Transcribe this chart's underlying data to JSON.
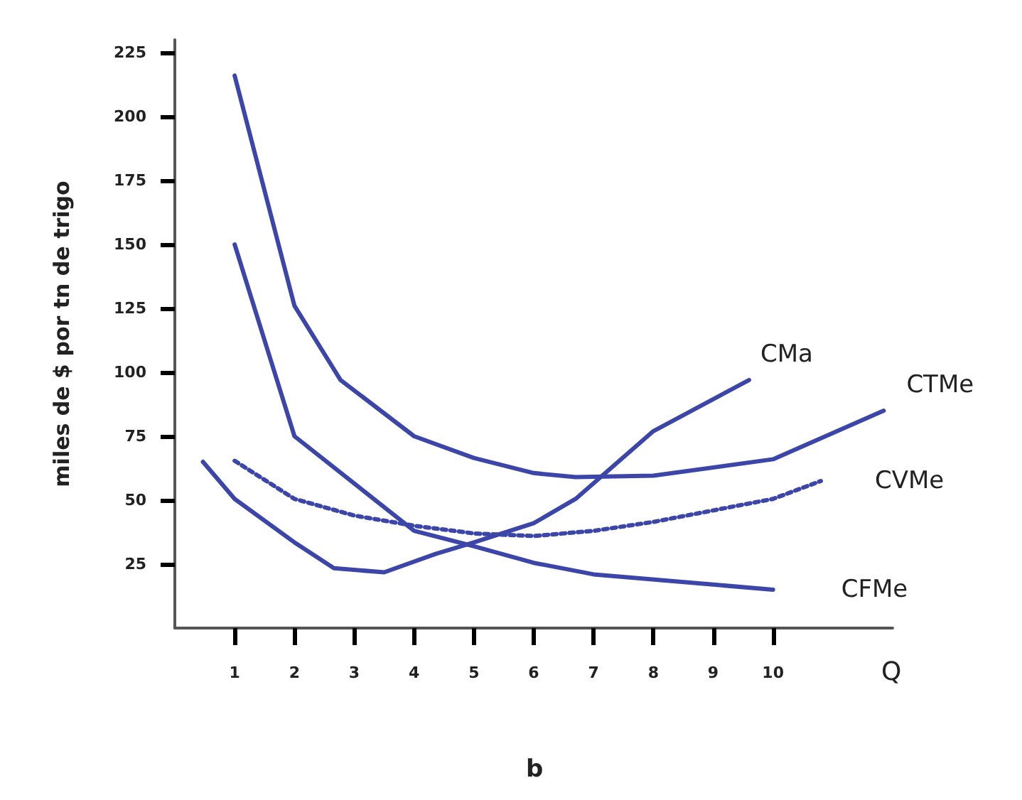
{
  "chart_data": {
    "type": "line",
    "xlabel": "Q",
    "ylabel": "miles de $ por tn de trigo",
    "xlim": [
      0,
      12
    ],
    "xticks": [
      1,
      2,
      3,
      4,
      5,
      6,
      7,
      8,
      9,
      10
    ],
    "ylim": [
      0,
      230
    ],
    "yticks": [
      25,
      50,
      75,
      100,
      125,
      150,
      175,
      200,
      225
    ],
    "grid": false,
    "marker": "none",
    "annotations": [
      "b"
    ],
    "series": [
      {
        "name": "CMa",
        "color": "#3b46a8",
        "line_style": "solid",
        "x": [
          0.47,
          1,
          2,
          2.66,
          3.5,
          4.36,
          5,
          6,
          6.7,
          8,
          9.6
        ],
        "values": [
          65,
          50.5,
          33.5,
          23.4,
          21.8,
          29,
          33.5,
          41,
          50.5,
          77,
          97
        ]
      },
      {
        "name": "CTMe",
        "color": "#3b46a8",
        "line_style": "solid",
        "x": [
          1,
          2,
          2.77,
          4,
          5,
          6,
          6.7,
          8,
          10,
          11.85
        ],
        "values": [
          216,
          126,
          97,
          75,
          66.5,
          60.6,
          59,
          59.6,
          66,
          85
        ]
      },
      {
        "name": "CVMe",
        "color": "#3b46a8",
        "line_style": "dotted",
        "x": [
          1,
          2,
          3,
          4,
          5,
          6,
          7,
          8,
          10,
          10.8
        ],
        "values": [
          65.4,
          50.5,
          44,
          40,
          37,
          36,
          38,
          41.5,
          50.5,
          57.5
        ]
      },
      {
        "name": "CFMe",
        "color": "#3b46a8",
        "line_style": "solid",
        "x": [
          1,
          2,
          4,
          5,
          6,
          7,
          9,
          10
        ],
        "values": [
          150,
          75,
          38,
          32,
          25.5,
          21,
          17,
          15
        ]
      }
    ]
  }
}
